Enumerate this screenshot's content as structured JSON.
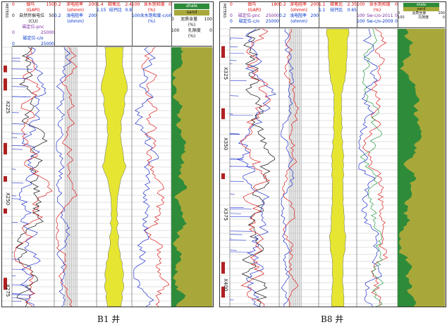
{
  "panels": [
    {
      "well_label": "B1 井",
      "meters_label": "METERS",
      "depth_marks": [
        "X225",
        "X250",
        "X275"
      ],
      "headers": {
        "gr": {
          "name": "伽马",
          "unit": "(GAPI)",
          "min": "0",
          "max": "150"
        },
        "sp": {
          "name": "自然伴振电位",
          "unit": "(CU)",
          "min": "0",
          "max": "50"
        },
        "pnc": {
          "name": "磁定位-pnc",
          "unit": "",
          "min": "0",
          "max": "25000"
        },
        "co": {
          "name": "磁定位-c/o",
          "unit": "",
          "min": "0",
          "max": "25000"
        },
        "deep": {
          "name": "深电阻率",
          "unit": "(ohmm)",
          "min": "0.2",
          "max": "200"
        },
        "shallow": {
          "name": "浅电阻率",
          "unit": "(ohmm)",
          "min": "0.2",
          "max": "200"
        },
        "cho": {
          "name": "碳氧比",
          "min": "1.4",
          "max": "2.4"
        },
        "sica": {
          "name": "硅钙比",
          "min": "1.15",
          "max": "0.9"
        },
        "sw": {
          "name": "含水饱和度",
          "unit": "(%)",
          "min": "100",
          "max": "0"
        },
        "swco": {
          "name": "含水饱和度-c/o",
          "unit": "(%)",
          "min": "100",
          "max": "0"
        },
        "lith": {
          "shale": "shale",
          "sand": "sand",
          "mud": "泥质含量",
          "mud_unit": "(%)",
          "mud_min": "0",
          "mud_max": "100",
          "por": "孔隙度",
          "por_unit": "(%)",
          "por_min": "100",
          "por_max": "0"
        }
      }
    },
    {
      "well_label": "B8 井",
      "meters_label": "METERS",
      "depth_marks": [
        "X325",
        "X350",
        "X375",
        "X400"
      ],
      "headers": {
        "gr": {
          "name": "伽马",
          "unit": "(GAPI)",
          "min": "0",
          "max": "180"
        },
        "pnc": {
          "name": "磁定位-pnc",
          "unit": "",
          "min": "0",
          "max": "25000"
        },
        "co": {
          "name": "磁定位-c/o",
          "unit": "",
          "min": "0",
          "max": "25000"
        },
        "deep": {
          "name": "深电阻率",
          "unit": "(ohmm)",
          "min": "0.2",
          "max": "200"
        },
        "shallow": {
          "name": "浅电阻率",
          "unit": "(ohmm)",
          "min": "0.2",
          "max": "200"
        },
        "cho": {
          "name": "碳氧比",
          "min": "1.1",
          "max": "2.35"
        },
        "sica": {
          "name": "硅钙比",
          "min": "1.1",
          "max": "0.65"
        },
        "sw": {
          "name": "含水饱和度",
          "unit": "(%)",
          "min": "100",
          "max": "0"
        },
        "sw2011": {
          "name": "Sw-c/o-2011",
          "unit": "(%)",
          "min": "100",
          "max": "0"
        },
        "sw2009": {
          "name": "Sw-c/o-2009",
          "unit": "(%)",
          "min": "100",
          "max": "0"
        },
        "lith": {
          "shale": "shale",
          "sand": "sand",
          "mud": "泥质含量",
          "mud_unit": "(%)",
          "mud_min": "0",
          "mud_max": "100",
          "por": "孔隙度",
          "por_unit": "(%)",
          "por_min": "100",
          "por_max": "0"
        }
      }
    }
  ],
  "colors": {
    "fill_yellow": "#e6e632",
    "fill_green": "#2e8b3a",
    "lith_tan": "#a8a83a",
    "red": "#dd2020",
    "blue": "#2233cc",
    "black": "#111111",
    "grid": "#999999"
  },
  "chart_data": {
    "type": "line",
    "title": "",
    "series": [
      {
        "well": "B1",
        "track": "cho",
        "values": [
          2.0,
          1.9,
          2.2,
          2.0,
          1.8,
          1.9,
          2.1,
          1.7,
          1.6,
          1.6,
          1.7,
          1.9,
          2.0,
          1.8
        ]
      },
      {
        "well": "B8",
        "track": "cho",
        "values": [
          1.9,
          1.8,
          1.7,
          1.4,
          1.4,
          1.4,
          1.5,
          1.5,
          1.5,
          1.6,
          1.7,
          1.5,
          1.5,
          1.5
        ]
      }
    ]
  }
}
